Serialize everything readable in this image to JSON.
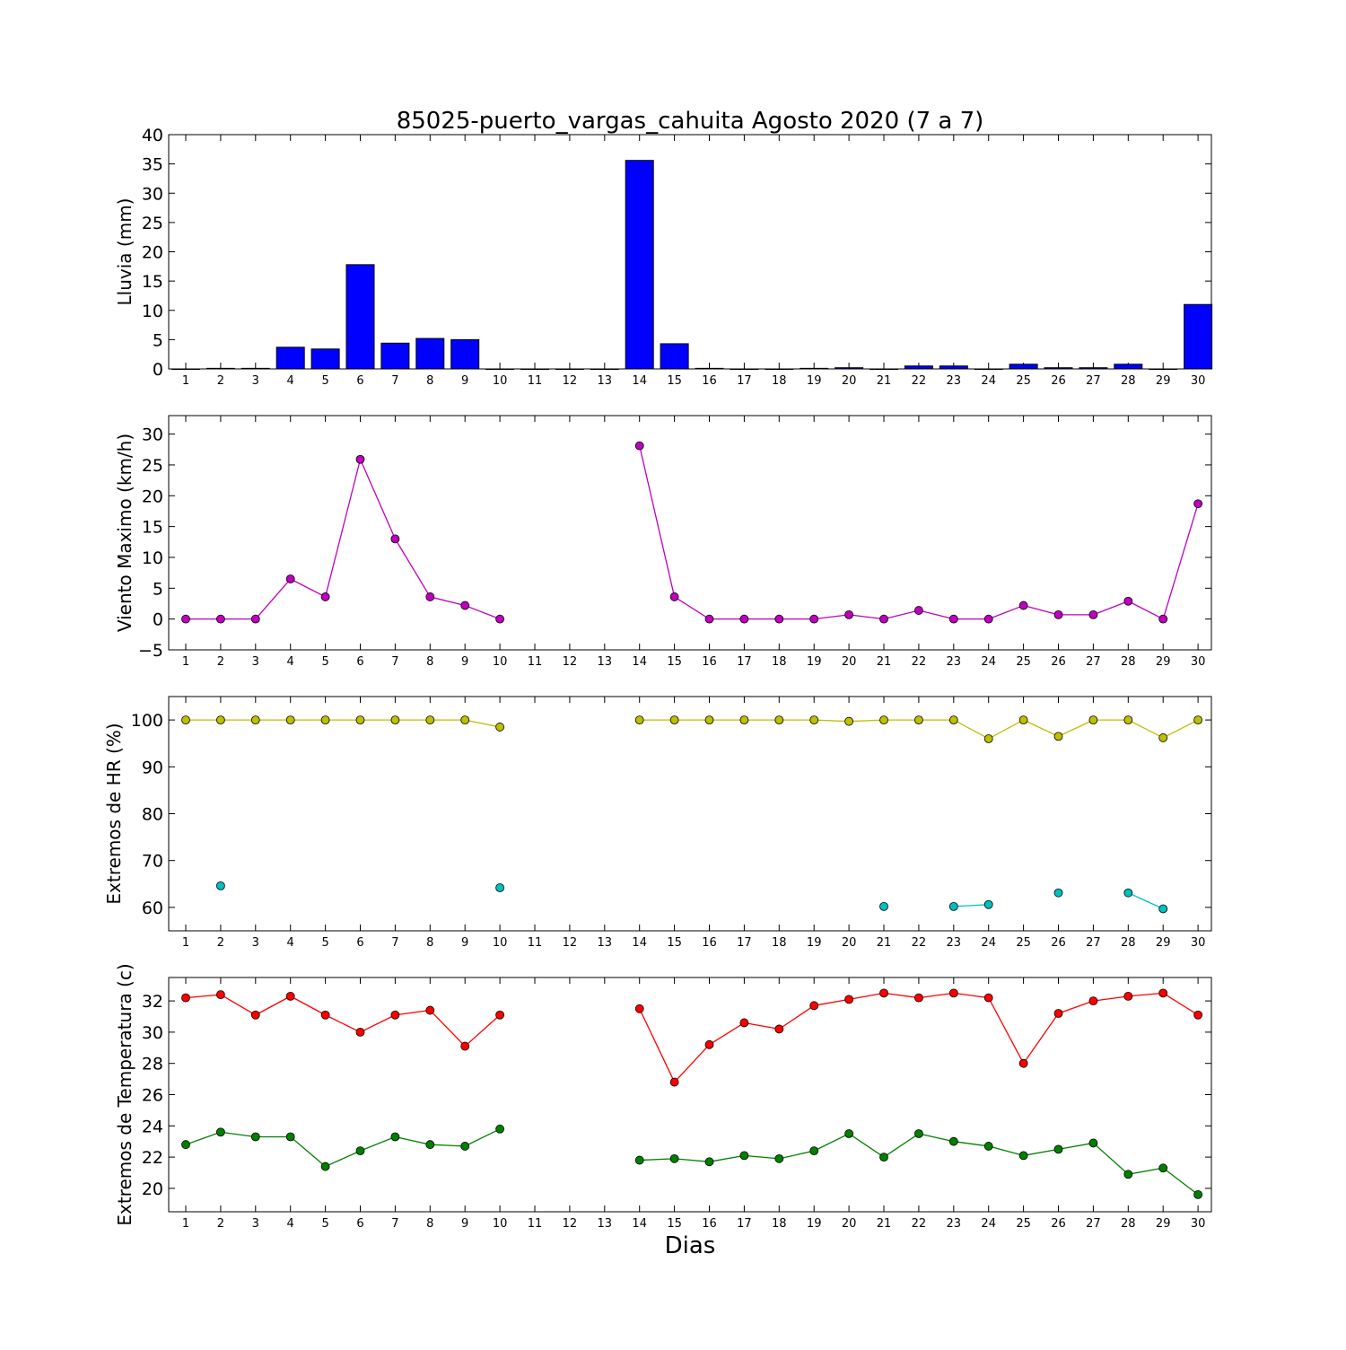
{
  "title": "85025-puerto_vargas_cahuita Agosto 2020  (7 a 7)",
  "xlabel": "Dias",
  "chart_data": [
    {
      "type": "bar",
      "ylabel": "Lluvia (mm)",
      "ylim": [
        0,
        40
      ],
      "yticks": [
        0,
        5,
        10,
        15,
        20,
        25,
        30,
        35,
        40
      ],
      "categories": [
        1,
        2,
        3,
        4,
        5,
        6,
        7,
        8,
        9,
        10,
        11,
        12,
        13,
        14,
        15,
        16,
        17,
        18,
        19,
        20,
        21,
        22,
        23,
        24,
        25,
        26,
        27,
        28,
        29,
        30
      ],
      "series": [
        {
          "color": "#0000ff",
          "values": [
            0,
            0.1,
            0.1,
            3.7,
            3.4,
            17.8,
            4.4,
            5.2,
            5.0,
            0,
            0,
            0,
            0,
            35.6,
            4.3,
            0.1,
            0,
            0,
            0.1,
            0.2,
            0,
            0.5,
            0.5,
            0,
            0.8,
            0.2,
            0.2,
            0.8,
            0,
            11.0
          ]
        }
      ]
    },
    {
      "type": "line",
      "ylabel": "Viento Maximo (km/h)",
      "ylim": [
        -5,
        33
      ],
      "yticks": [
        -5,
        0,
        5,
        10,
        15,
        20,
        25,
        30
      ],
      "x": [
        1,
        2,
        3,
        4,
        5,
        6,
        7,
        8,
        9,
        10,
        11,
        12,
        13,
        14,
        15,
        16,
        17,
        18,
        19,
        20,
        21,
        22,
        23,
        24,
        25,
        26,
        27,
        28,
        29,
        30
      ],
      "series": [
        {
          "color": "#bf00bf",
          "values": [
            0,
            0,
            0,
            6.5,
            3.6,
            25.9,
            13.0,
            3.6,
            2.2,
            0,
            null,
            null,
            null,
            28.1,
            3.6,
            0,
            0,
            0,
            0,
            0.7,
            0,
            1.4,
            0,
            0,
            2.2,
            0.7,
            0.7,
            2.9,
            0,
            18.7
          ]
        }
      ]
    },
    {
      "type": "line",
      "ylabel": "Extremos de HR (%)",
      "ylim": [
        55,
        105
      ],
      "yticks": [
        60,
        70,
        80,
        90,
        100
      ],
      "x": [
        1,
        2,
        3,
        4,
        5,
        6,
        7,
        8,
        9,
        10,
        11,
        12,
        13,
        14,
        15,
        16,
        17,
        18,
        19,
        20,
        21,
        22,
        23,
        24,
        25,
        26,
        27,
        28,
        29,
        30
      ],
      "series": [
        {
          "color": "#bfbf00",
          "values": [
            100,
            100,
            100,
            100,
            100,
            100,
            100,
            100,
            100,
            98.5,
            null,
            null,
            null,
            100,
            100,
            100,
            100,
            100,
            100,
            99.7,
            100,
            100,
            100,
            96,
            100,
            96.5,
            100,
            100,
            96.2,
            100
          ]
        },
        {
          "color": "#00bfbf",
          "values": [
            null,
            64.6,
            null,
            null,
            null,
            null,
            null,
            null,
            null,
            64.2,
            null,
            null,
            null,
            null,
            null,
            null,
            null,
            null,
            null,
            null,
            60.2,
            null,
            60.2,
            60.6,
            null,
            63.1,
            null,
            63.1,
            59.7,
            null
          ]
        }
      ]
    },
    {
      "type": "line",
      "ylabel": "Extremos de Temperatura (c)",
      "ylim": [
        18.5,
        33.5
      ],
      "yticks": [
        20,
        22,
        24,
        26,
        28,
        30,
        32
      ],
      "x": [
        1,
        2,
        3,
        4,
        5,
        6,
        7,
        8,
        9,
        10,
        11,
        12,
        13,
        14,
        15,
        16,
        17,
        18,
        19,
        20,
        21,
        22,
        23,
        24,
        25,
        26,
        27,
        28,
        29,
        30
      ],
      "series": [
        {
          "color": "#ff0000",
          "values": [
            32.2,
            32.4,
            31.1,
            32.3,
            31.1,
            30.0,
            31.1,
            31.4,
            29.1,
            31.1,
            null,
            null,
            null,
            31.5,
            26.8,
            29.2,
            30.6,
            30.2,
            31.7,
            32.1,
            32.5,
            32.2,
            32.5,
            32.2,
            28.0,
            31.2,
            32.0,
            32.3,
            32.5,
            31.1
          ]
        },
        {
          "color": "#008000",
          "values": [
            22.8,
            23.6,
            23.3,
            23.3,
            21.4,
            22.4,
            23.3,
            22.8,
            22.7,
            23.8,
            null,
            null,
            null,
            21.8,
            21.9,
            21.7,
            22.1,
            21.9,
            22.4,
            23.5,
            22.0,
            23.5,
            23.0,
            22.7,
            22.1,
            22.5,
            22.9,
            20.9,
            21.3,
            19.6
          ]
        }
      ]
    }
  ]
}
